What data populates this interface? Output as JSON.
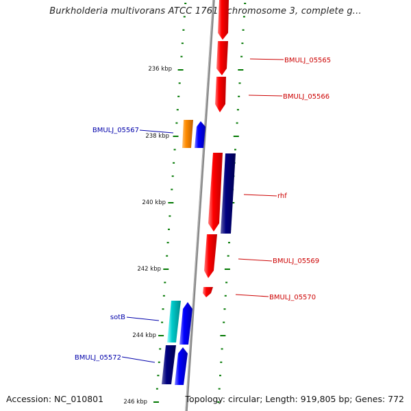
{
  "title": "Burkholderia multivorans ATCC 17616 chromosome 3, complete g...",
  "footer": {
    "accession": "Accession: NC_010801",
    "topology": "Topology: circular; Length: 919,805 bp; Genes: 772"
  },
  "colors": {
    "forward_gene": "#ff0000",
    "dark_red_label": "#cc0000",
    "reverse_gene": "#0000ff",
    "dark_blue_gene": "#000080",
    "orange_gene": "#ff8c00",
    "cyan_gene": "#00cccc",
    "tick": "#007700",
    "backbone": "#888888"
  },
  "kbp_labels": [
    "236 kbp",
    "238 kbp",
    "240 kbp",
    "242 kbp",
    "244 kbp",
    "246 kbp"
  ],
  "gene_labels": {
    "right": [
      "BMULJ_05565",
      "BMULJ_05566",
      "rhf",
      "BMULJ_05569",
      "BMULJ_05570"
    ],
    "left": [
      "BMULJ_05567",
      "sotB",
      "BMULJ_05572"
    ]
  }
}
